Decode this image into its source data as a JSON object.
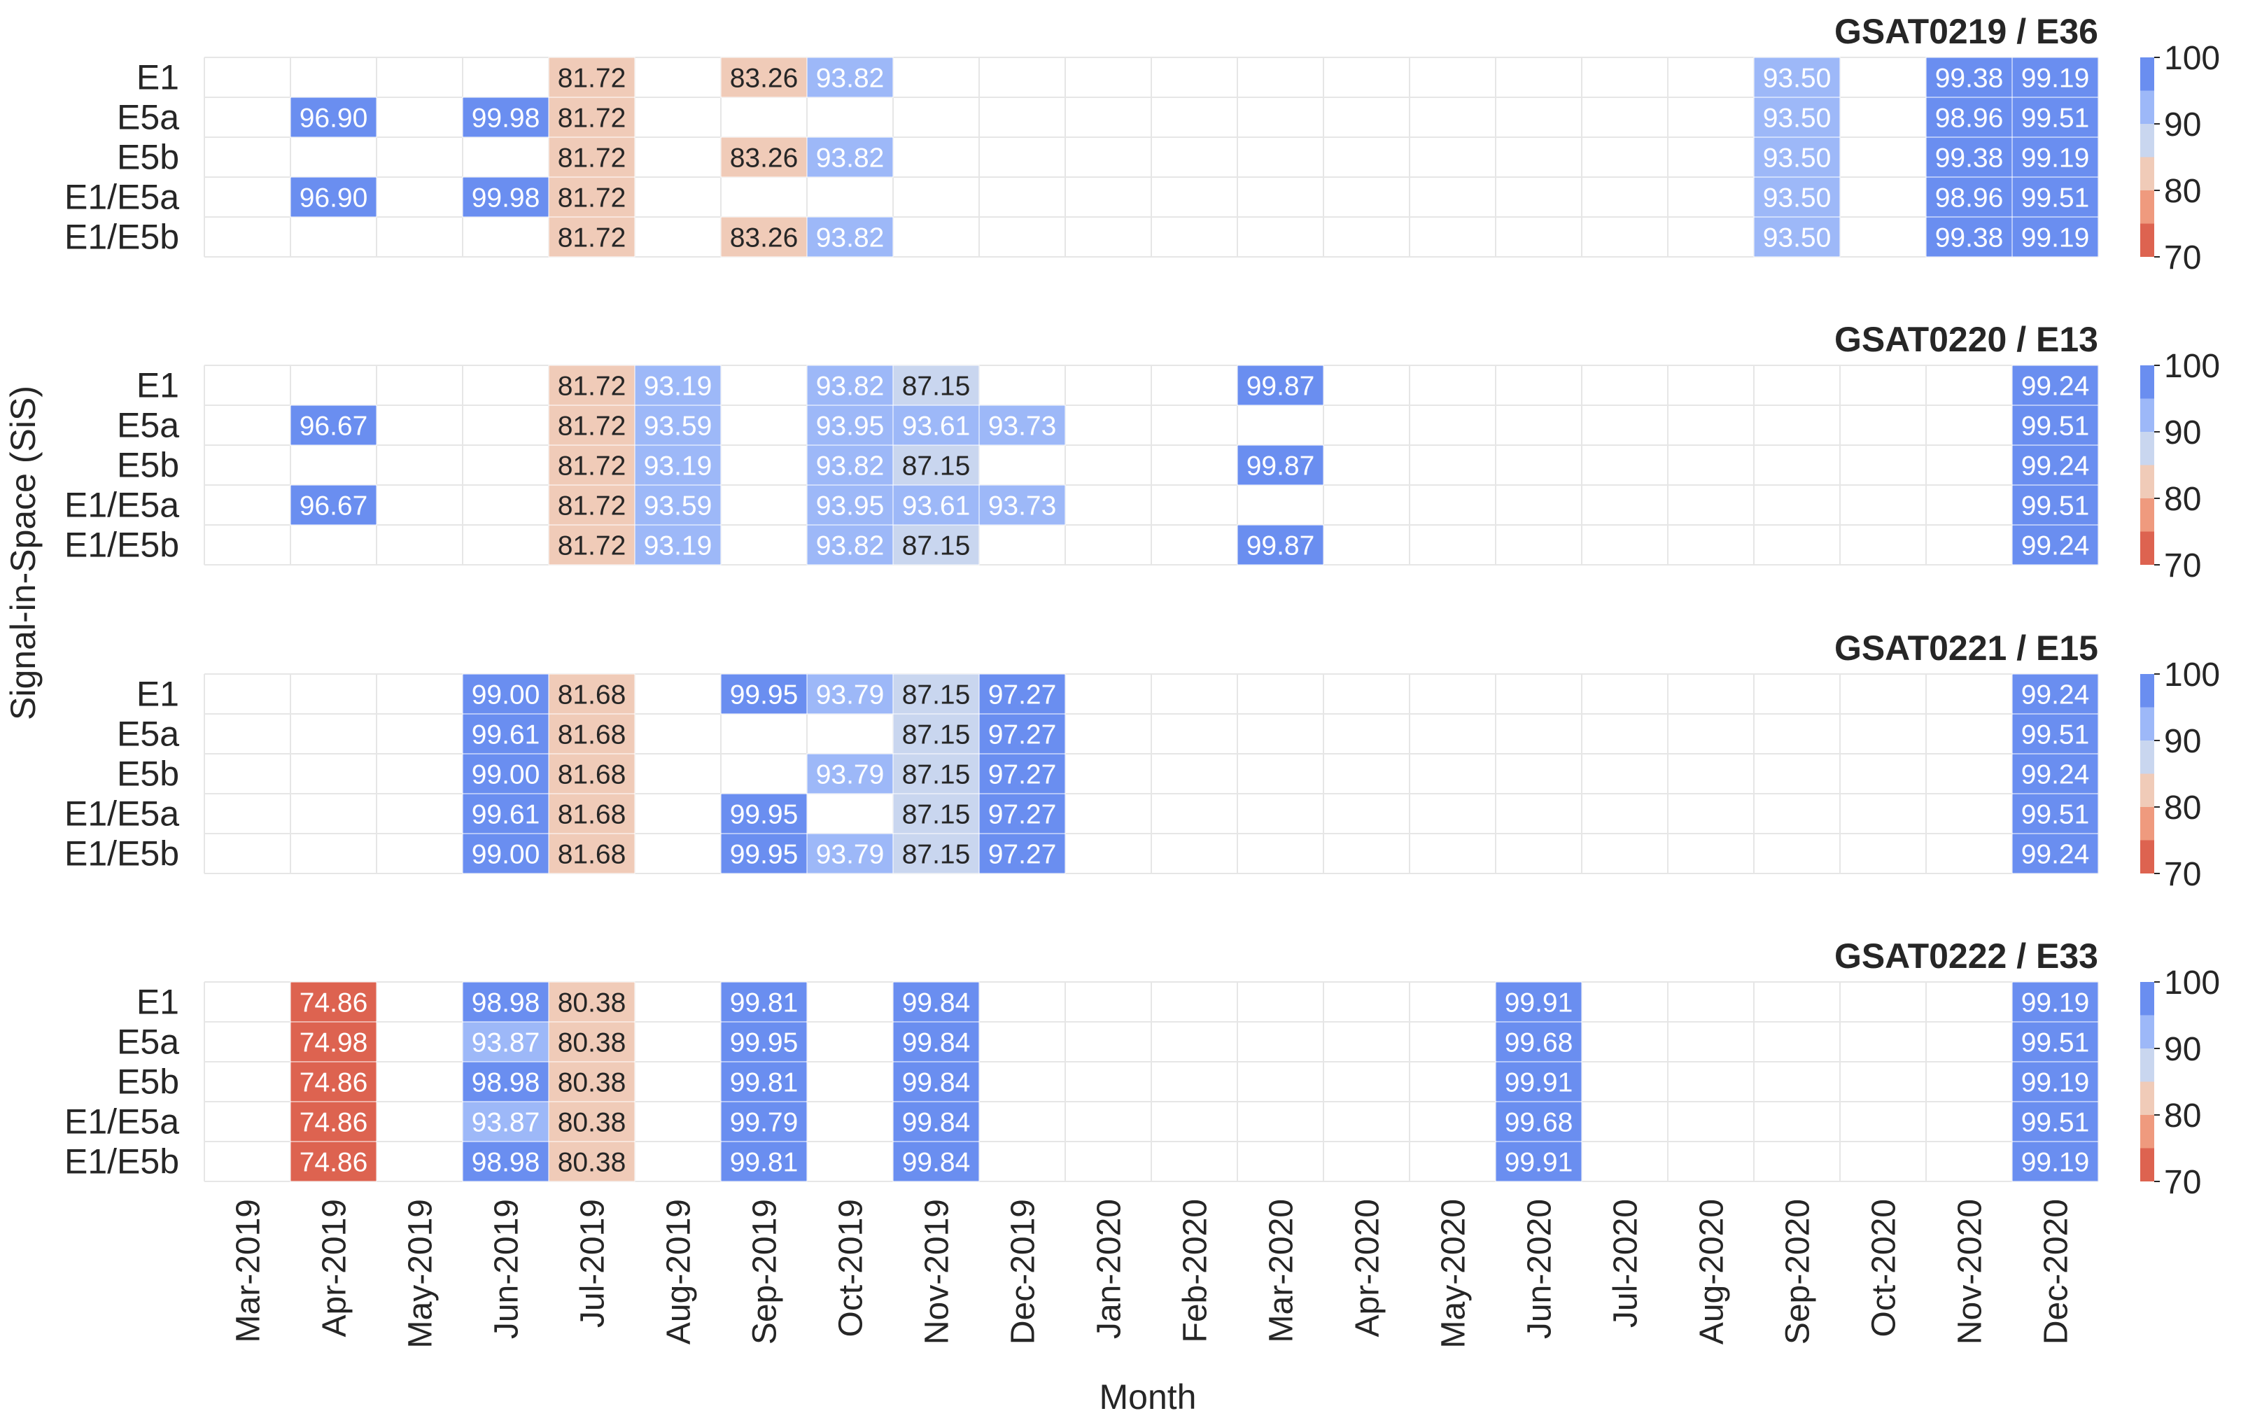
{
  "chart_data": {
    "type": "heatmap",
    "ylabel": "Signal-in-Space (SiS)",
    "xlabel": "Month",
    "months": [
      "Mar-2019",
      "Apr-2019",
      "May-2019",
      "Jun-2019",
      "Jul-2019",
      "Aug-2019",
      "Sep-2019",
      "Oct-2019",
      "Nov-2019",
      "Dec-2019",
      "Jan-2020",
      "Feb-2020",
      "Mar-2020",
      "Apr-2020",
      "May-2020",
      "Jun-2020",
      "Jul-2020",
      "Aug-2020",
      "Sep-2020",
      "Oct-2020",
      "Nov-2020",
      "Dec-2020"
    ],
    "signals": [
      "E1",
      "E5a",
      "E5b",
      "E1/E5a",
      "E1/E5b"
    ],
    "colorbar": {
      "ticks": [
        "100",
        "90",
        "80",
        "70"
      ],
      "range": [
        70,
        100
      ]
    },
    "panels": [
      {
        "title": "GSAT0219 / E36",
        "cells": [
          [
            null,
            null,
            null,
            null,
            81.72,
            null,
            83.26,
            93.82,
            null,
            null,
            null,
            null,
            null,
            null,
            null,
            null,
            null,
            null,
            93.5,
            null,
            99.38,
            99.19
          ],
          [
            null,
            96.9,
            null,
            99.98,
            81.72,
            null,
            null,
            null,
            null,
            null,
            null,
            null,
            null,
            null,
            null,
            null,
            null,
            null,
            93.5,
            null,
            98.96,
            99.51
          ],
          [
            null,
            null,
            null,
            null,
            81.72,
            null,
            83.26,
            93.82,
            null,
            null,
            null,
            null,
            null,
            null,
            null,
            null,
            null,
            null,
            93.5,
            null,
            99.38,
            99.19
          ],
          [
            null,
            96.9,
            null,
            99.98,
            81.72,
            null,
            null,
            null,
            null,
            null,
            null,
            null,
            null,
            null,
            null,
            null,
            null,
            null,
            93.5,
            null,
            98.96,
            99.51
          ],
          [
            null,
            null,
            null,
            null,
            81.72,
            null,
            83.26,
            93.82,
            null,
            null,
            null,
            null,
            null,
            null,
            null,
            null,
            null,
            null,
            93.5,
            null,
            99.38,
            99.19
          ]
        ]
      },
      {
        "title": "GSAT0220 / E13",
        "cells": [
          [
            null,
            null,
            null,
            null,
            81.72,
            93.19,
            null,
            93.82,
            87.15,
            null,
            null,
            null,
            99.87,
            null,
            null,
            null,
            null,
            null,
            null,
            null,
            null,
            99.24
          ],
          [
            null,
            96.67,
            null,
            null,
            81.72,
            93.59,
            null,
            93.95,
            93.61,
            93.73,
            null,
            null,
            null,
            null,
            null,
            null,
            null,
            null,
            null,
            null,
            null,
            99.51
          ],
          [
            null,
            null,
            null,
            null,
            81.72,
            93.19,
            null,
            93.82,
            87.15,
            null,
            null,
            null,
            99.87,
            null,
            null,
            null,
            null,
            null,
            null,
            null,
            null,
            99.24
          ],
          [
            null,
            96.67,
            null,
            null,
            81.72,
            93.59,
            null,
            93.95,
            93.61,
            93.73,
            null,
            null,
            null,
            null,
            null,
            null,
            null,
            null,
            null,
            null,
            null,
            99.51
          ],
          [
            null,
            null,
            null,
            null,
            81.72,
            93.19,
            null,
            93.82,
            87.15,
            null,
            null,
            null,
            99.87,
            null,
            null,
            null,
            null,
            null,
            null,
            null,
            null,
            99.24
          ]
        ]
      },
      {
        "title": "GSAT0221 / E15",
        "cells": [
          [
            null,
            null,
            null,
            99.0,
            81.68,
            null,
            99.95,
            93.79,
            87.15,
            97.27,
            null,
            null,
            null,
            null,
            null,
            null,
            null,
            null,
            null,
            null,
            null,
            99.24
          ],
          [
            null,
            null,
            null,
            99.61,
            81.68,
            null,
            null,
            null,
            87.15,
            97.27,
            null,
            null,
            null,
            null,
            null,
            null,
            null,
            null,
            null,
            null,
            null,
            99.51
          ],
          [
            null,
            null,
            null,
            99.0,
            81.68,
            null,
            null,
            93.79,
            87.15,
            97.27,
            null,
            null,
            null,
            null,
            null,
            null,
            null,
            null,
            null,
            null,
            null,
            99.24
          ],
          [
            null,
            null,
            null,
            99.61,
            81.68,
            null,
            99.95,
            null,
            87.15,
            97.27,
            null,
            null,
            null,
            null,
            null,
            null,
            null,
            null,
            null,
            null,
            null,
            99.51
          ],
          [
            null,
            null,
            null,
            99.0,
            81.68,
            null,
            99.95,
            93.79,
            87.15,
            97.27,
            null,
            null,
            null,
            null,
            null,
            null,
            null,
            null,
            null,
            null,
            null,
            99.24
          ]
        ]
      },
      {
        "title": "GSAT0222 / E33",
        "cells": [
          [
            null,
            74.86,
            null,
            98.98,
            80.38,
            null,
            99.81,
            null,
            99.84,
            null,
            null,
            null,
            null,
            null,
            null,
            99.91,
            null,
            null,
            null,
            null,
            null,
            99.19
          ],
          [
            null,
            74.98,
            null,
            93.87,
            80.38,
            null,
            99.95,
            null,
            99.84,
            null,
            null,
            null,
            null,
            null,
            null,
            99.68,
            null,
            null,
            null,
            null,
            null,
            99.51
          ],
          [
            null,
            74.86,
            null,
            98.98,
            80.38,
            null,
            99.81,
            null,
            99.84,
            null,
            null,
            null,
            null,
            null,
            null,
            99.91,
            null,
            null,
            null,
            null,
            null,
            99.19
          ],
          [
            null,
            74.86,
            null,
            93.87,
            80.38,
            null,
            99.79,
            null,
            99.84,
            null,
            null,
            null,
            null,
            null,
            null,
            99.68,
            null,
            null,
            null,
            null,
            null,
            99.51
          ],
          [
            null,
            74.86,
            null,
            98.98,
            80.38,
            null,
            99.81,
            null,
            99.84,
            null,
            null,
            null,
            null,
            null,
            null,
            99.91,
            null,
            null,
            null,
            null,
            null,
            99.19
          ]
        ]
      }
    ],
    "colors": {
      "grid": "#e6e6e6",
      "text_dark": "#262626",
      "text_light": "#ffffff",
      "bin_95_100": "#6a8ef0",
      "bin_90_95": "#9db8f8",
      "bin_85_90": "#c9d6ef",
      "bin_80_85": "#f0cbb8",
      "bin_75_80": "#ef9a7e",
      "bin_70_75": "#dd6350"
    }
  }
}
